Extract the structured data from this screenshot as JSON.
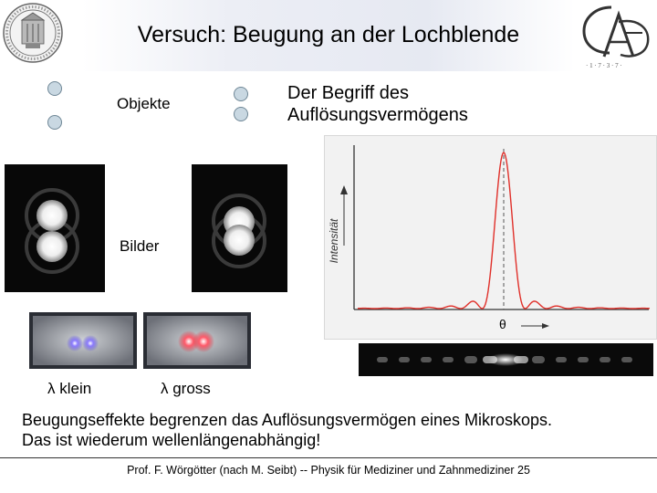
{
  "header": {
    "title": "Versuch: Beugung an der Lochblende",
    "left_logo_icon": "university-seal-icon",
    "right_logo_icon": "cga-logo-icon",
    "right_logo_letters": "CGA"
  },
  "labels": {
    "objekte": "Objekte",
    "bilder": "Bilder",
    "lambda_small": "λ klein",
    "lambda_large": "λ gross",
    "resolution_line1": "Der Begriff des",
    "resolution_line2": "Auflösungsvermögens"
  },
  "graph": {
    "ylabel": "Intensität",
    "xlabel": "θ",
    "curve_color": "#e0302a"
  },
  "body": {
    "line1": "Beugungseffekte begrenzen das Auflösungsvermögen eines Mikroskops.",
    "line2": "Das ist wiederum wellenlängenabhängig!"
  },
  "footer": {
    "text": "Prof. F. Wörgötter (nach M. Seibt) -- Physik für Mediziner und Zahnmediziner  25"
  }
}
